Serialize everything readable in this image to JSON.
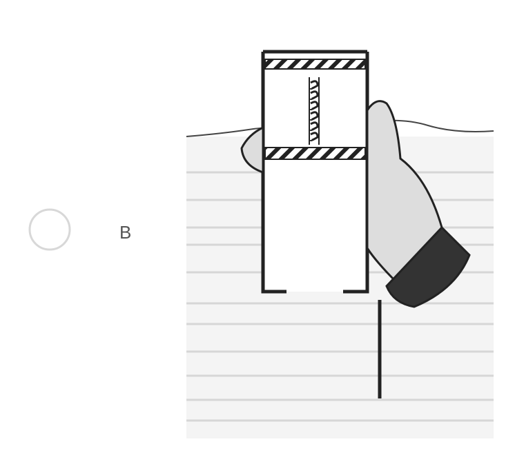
{
  "option": {
    "label": "B"
  }
}
